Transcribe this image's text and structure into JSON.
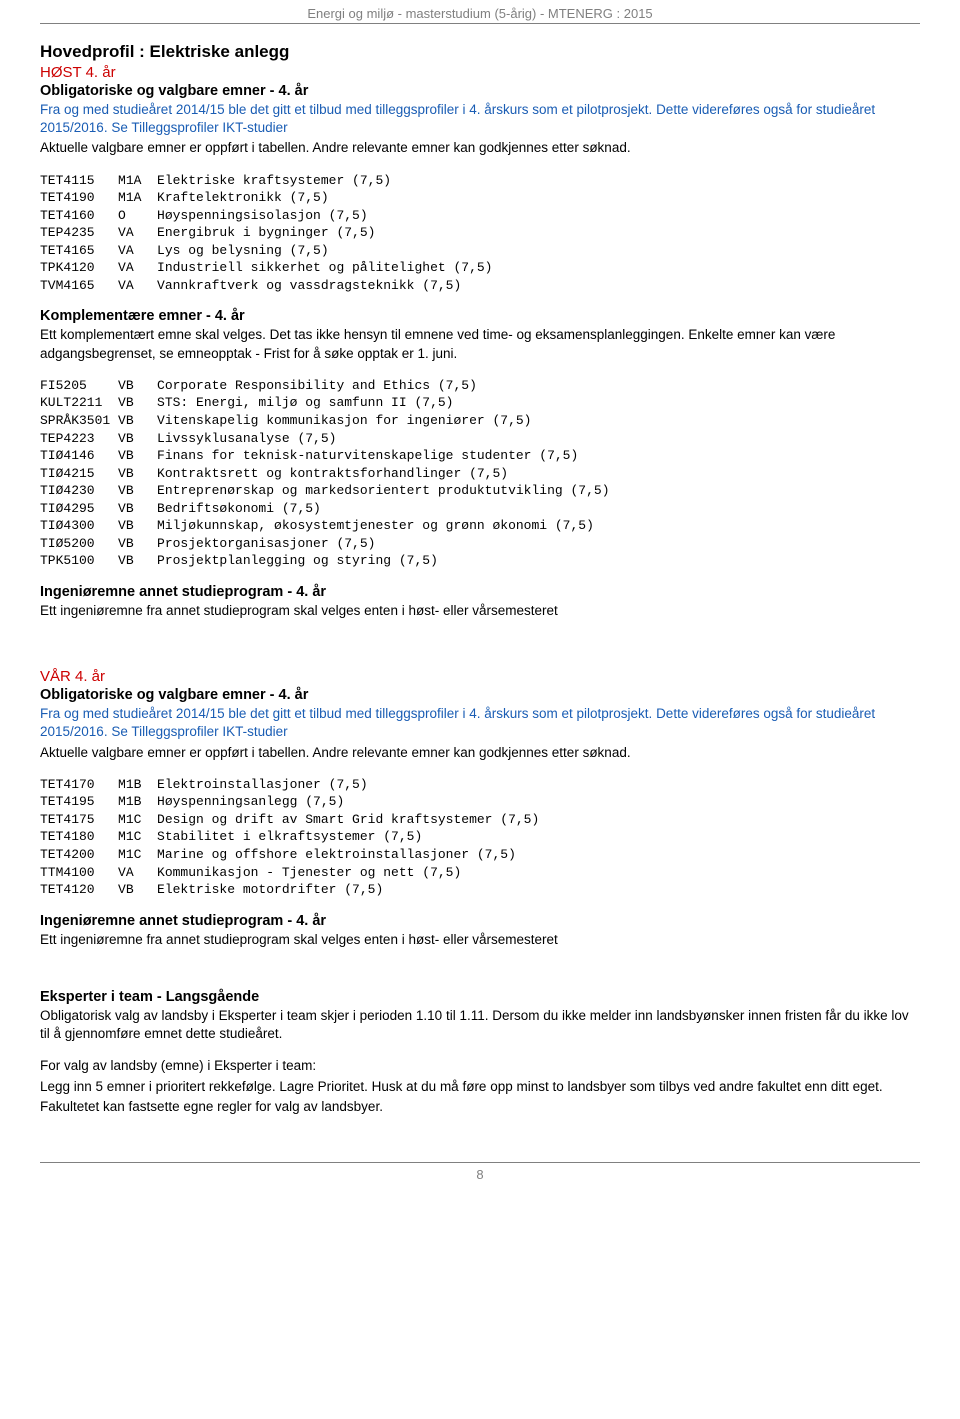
{
  "header": "Energi og miljø - masterstudium (5-årig) - MTENERG : 2015",
  "hovedprofil_title": "Hovedprofil : Elektriske anlegg",
  "host4_title": "HØST 4. år",
  "oblig4_title": "Obligatoriske og valgbare emner - 4. år",
  "oblig4_blue1": "Fra og med studieåret 2014/15 ble det gitt et tilbud med tilleggsprofiler i 4. årskurs som et pilotprosjekt. Dette videreføres også for studieåret 2015/2016. Se Tilleggsprofiler IKT-studier",
  "oblig4_black": "Aktuelle valgbare emner er oppført i tabellen. Andre relevante emner kan godkjennes etter søknad.",
  "host_courses": "TET4115   M1A  Elektriske kraftsystemer (7,5)\nTET4190   M1A  Kraftelektronikk (7,5)\nTET4160   O    Høyspenningsisolasjon (7,5)\nTEP4235   VA   Energibruk i bygninger (7,5)\nTET4165   VA   Lys og belysning (7,5)\nTPK4120   VA   Industriell sikkerhet og pålitelighet (7,5)\nTVM4165   VA   Vannkraftverk og vassdragsteknikk (7,5)",
  "komp_title": "Komplementære emner - 4. år",
  "komp_para": "Ett komplementært emne skal velges. Det tas ikke hensyn til emnene ved time- og eksamensplanleggingen. Enkelte emner kan være adgangsbegrenset, se emneopptak - Frist for å søke opptak er 1. juni.",
  "komp_courses": "FI5205    VB   Corporate Responsibility and Ethics (7,5)\nKULT2211  VB   STS: Energi, miljø og samfunn II (7,5)\nSPRÅK3501 VB   Vitenskapelig kommunikasjon for ingeniører (7,5)\nTEP4223   VB   Livssyklusanalyse (7,5)\nTIØ4146   VB   Finans for teknisk-naturvitenskapelige studenter (7,5)\nTIØ4215   VB   Kontraktsrett og kontraktsforhandlinger (7,5)\nTIØ4230   VB   Entreprenørskap og markedsorientert produktutvikling (7,5)\nTIØ4295   VB   Bedriftsøkonomi (7,5)\nTIØ4300   VB   Miljøkunnskap, økosystemtjenester og grønn økonomi (7,5)\nTIØ5200   VB   Prosjektorganisasjoner (7,5)\nTPK5100   VB   Prosjektplanlegging og styring (7,5)",
  "ing_title": "Ingeniøremne annet studieprogram - 4. år",
  "ing_para": "Ett ingeniøremne fra annet studieprogram skal velges enten i høst- eller vårsemesteret",
  "var4_title": "VÅR 4. år",
  "var_courses": "TET4170   M1B  Elektroinstallasjoner (7,5)\nTET4195   M1B  Høyspenningsanlegg (7,5)\nTET4175   M1C  Design og drift av Smart Grid kraftsystemer (7,5)\nTET4180   M1C  Stabilitet i elkraftsystemer (7,5)\nTET4200   M1C  Marine og offshore elektroinstallasjoner (7,5)\nTTM4100   VA   Kommunikasjon - Tjenester og nett (7,5)\nTET4120   VB   Elektriske motordrifter (7,5)",
  "eks_title": "Eksperter i team - Langsgående",
  "eks_p1": "Obligatorisk valg av landsby i Eksperter i team skjer i perioden 1.10 til 1.11. Dersom du ikke melder inn landsbyønsker innen fristen får du ikke lov til å gjennomføre emnet dette studieåret.",
  "eks_p2": "For valg av landsby (emne) i Eksperter i team:",
  "eks_p3": "Legg inn 5 emner i prioritert rekkefølge. Lagre Prioritet. Husk at du må føre opp minst to landsbyer som tilbys ved andre fakultet enn ditt eget.",
  "eks_p4": "Fakultetet kan fastsette egne regler for valg av landsbyer.",
  "page_number": "8"
}
